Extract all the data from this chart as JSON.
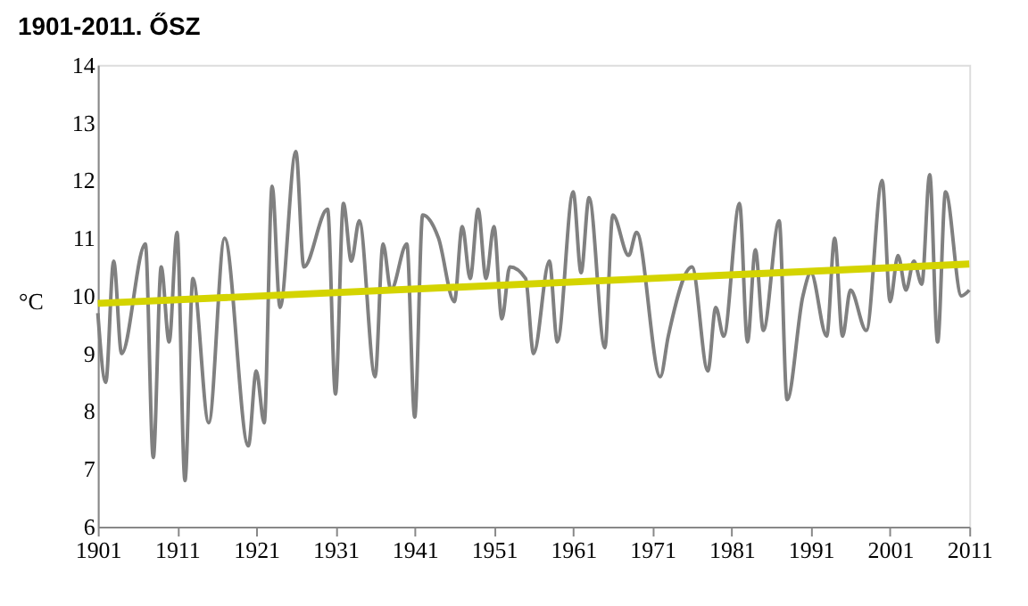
{
  "chart_data": {
    "type": "line",
    "title": "1901-2011. ŐSZ",
    "ylabel": "°C",
    "series": [
      {
        "color": "#808080",
        "x": [
          1901,
          1902,
          1903,
          1904,
          1907,
          1908,
          1909,
          1910,
          1911,
          1912,
          1913,
          1915,
          1917,
          1920,
          1921,
          1922,
          1923,
          1924,
          1926,
          1927,
          1930,
          1931,
          1932,
          1933,
          1934,
          1936,
          1937,
          1938,
          1940,
          1941,
          1942,
          1944,
          1946,
          1947,
          1948,
          1949,
          1950,
          1951,
          1952,
          1953,
          1955,
          1956,
          1958,
          1959,
          1961,
          1962,
          1963,
          1965,
          1966,
          1968,
          1969,
          1972,
          1973,
          1976,
          1978,
          1979,
          1980,
          1982,
          1983,
          1984,
          1985,
          1987,
          1988,
          1990,
          1991,
          1993,
          1994,
          1995,
          1996,
          1998,
          2000,
          2001,
          2002,
          2003,
          2004,
          2005,
          2006,
          2007,
          2008,
          2010,
          2011
        ],
        "values": [
          9.7,
          8.5,
          10.6,
          9.0,
          10.9,
          7.2,
          10.5,
          9.2,
          11.1,
          6.8,
          10.3,
          7.8,
          11.0,
          7.4,
          8.7,
          7.8,
          11.9,
          9.8,
          12.5,
          10.5,
          11.5,
          8.3,
          11.6,
          10.6,
          11.3,
          8.6,
          10.9,
          10.1,
          10.9,
          7.9,
          11.4,
          11.0,
          9.9,
          11.2,
          10.3,
          11.5,
          10.3,
          11.2,
          9.6,
          10.5,
          10.3,
          9.0,
          10.6,
          9.2,
          11.8,
          10.4,
          11.7,
          9.1,
          11.4,
          10.7,
          11.1,
          8.6,
          9.3,
          10.5,
          8.7,
          9.8,
          9.3,
          11.6,
          9.2,
          10.8,
          9.4,
          11.3,
          8.2,
          10.0,
          10.4,
          9.3,
          11.0,
          9.3,
          10.1,
          9.4,
          12.0,
          9.9,
          10.7,
          10.1,
          10.6,
          10.2,
          12.1,
          9.2,
          11.8,
          10.0,
          10.1
        ]
      },
      {
        "type": "line",
        "color": "#d4d400",
        "x": [
          1901,
          2011
        ],
        "values": [
          9.87,
          10.55
        ]
      }
    ],
    "xlim": [
      1901,
      2011
    ],
    "xticks": [
      1901,
      1911,
      1921,
      1931,
      1941,
      1951,
      1961,
      1971,
      1981,
      1991,
      2001,
      2011
    ],
    "ylim": [
      6,
      14
    ],
    "yticks": [
      6,
      7,
      8,
      9,
      10,
      11,
      12,
      13,
      14
    ],
    "grid": false,
    "marker": "none",
    "line_style": "solid"
  }
}
